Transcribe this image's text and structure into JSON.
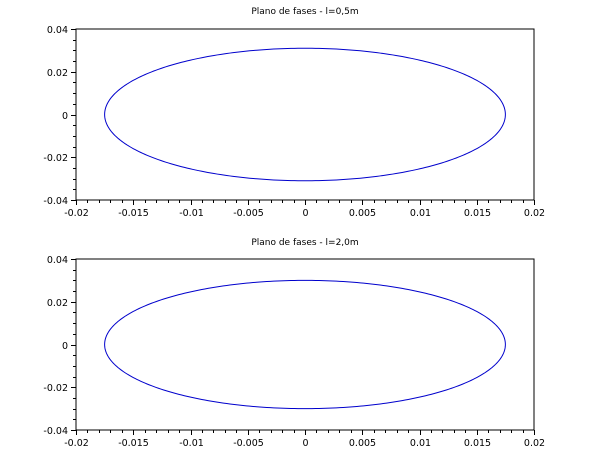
{
  "chart_data": [
    {
      "type": "line",
      "title": "Plano de fases - l=0,5m",
      "xlabel": "",
      "ylabel": "",
      "xlim": [
        -0.02,
        0.02
      ],
      "ylim": [
        -0.04,
        0.04
      ],
      "x_ticks": [
        "-0.02",
        "-0.015",
        "-0.01",
        "-0.005",
        "0",
        "0.005",
        "0.01",
        "0.015",
        "0.02"
      ],
      "x_tick_values": [
        -0.02,
        -0.015,
        -0.01,
        -0.005,
        0,
        0.005,
        0.01,
        0.015,
        0.02
      ],
      "y_ticks": [
        "0.04",
        "0.02",
        "0",
        "-0.02",
        "-0.04"
      ],
      "y_tick_values": [
        0.04,
        0.02,
        0,
        -0.02,
        -0.04
      ],
      "grid": false,
      "series": [
        {
          "color": "#0000cc",
          "shape": "ellipse",
          "x_amplitude": 0.0175,
          "y_amplitude": 0.031
        }
      ]
    },
    {
      "type": "line",
      "title": "Plano de fases - l=2,0m",
      "xlabel": "",
      "ylabel": "",
      "xlim": [
        -0.02,
        0.02
      ],
      "ylim": [
        -0.04,
        0.04
      ],
      "x_ticks": [
        "-0.02",
        "-0.015",
        "-0.01",
        "-0.005",
        "0",
        "0.005",
        "0.01",
        "0.015",
        "0.02"
      ],
      "x_tick_values": [
        -0.02,
        -0.015,
        -0.01,
        -0.005,
        0,
        0.005,
        0.01,
        0.015,
        0.02
      ],
      "y_ticks": [
        "0.04",
        "0.02",
        "0",
        "-0.02",
        "-0.04"
      ],
      "y_tick_values": [
        0.04,
        0.02,
        0,
        -0.02,
        -0.04
      ],
      "grid": false,
      "series": [
        {
          "color": "#0000cc",
          "shape": "ellipse",
          "x_amplitude": 0.0175,
          "y_amplitude": 0.03
        }
      ]
    }
  ]
}
